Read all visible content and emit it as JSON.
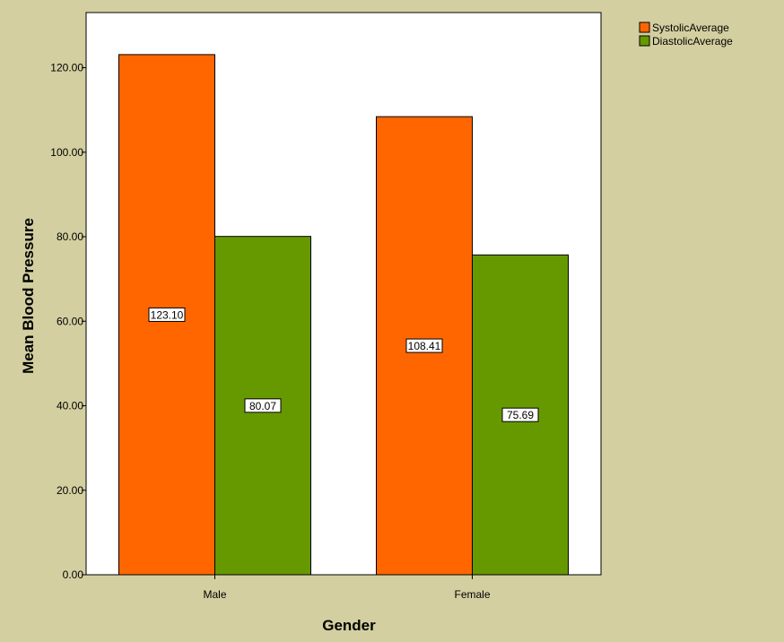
{
  "chart_data": {
    "type": "bar",
    "categories": [
      "Male",
      "Female"
    ],
    "series": [
      {
        "name": "SystolicAverage",
        "values": [
          123.1,
          108.41
        ],
        "labels": [
          "123.10",
          "108.41"
        ],
        "color": "#FF6600"
      },
      {
        "name": "DiastolicAverage",
        "values": [
          80.07,
          75.69
        ],
        "labels": [
          "80.07",
          "75.69"
        ],
        "color": "#669900"
      }
    ],
    "xlabel": "Gender",
    "ylabel": "Mean Blood Pressure",
    "ylim": [
      0,
      130
    ],
    "yticks": [
      0,
      20,
      40,
      60,
      80,
      100,
      120
    ],
    "ytick_labels": [
      "0.00",
      "20.00",
      "40.00",
      "60.00",
      "80.00",
      "100.00",
      "120.00"
    ],
    "grid": false,
    "legend_position": "top-right",
    "plot_background": "#FFFFFF",
    "figure_background": "#D3CFA0"
  }
}
